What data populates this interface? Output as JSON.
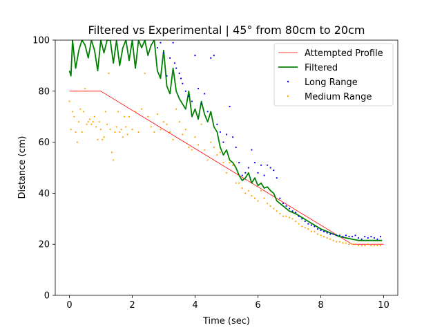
{
  "chart_data": {
    "type": "line",
    "title": "Filtered vs Experimental | 45° from 80cm to 20cm",
    "xlabel": "Time (sec)",
    "ylabel": "Distance (cm)",
    "xlim": [
      -0.45,
      10.45
    ],
    "ylim": [
      0,
      100
    ],
    "xticks": [
      0,
      2,
      4,
      6,
      8,
      10
    ],
    "yticks": [
      0,
      20,
      40,
      60,
      80,
      100
    ],
    "grid": false,
    "legend_position": "top-right",
    "series": [
      {
        "name": "Attempted Profile",
        "kind": "line",
        "color": "#ff0000",
        "x": [
          0,
          1,
          9,
          10
        ],
        "y": [
          80,
          80,
          20,
          20
        ]
      },
      {
        "name": "Filtered",
        "kind": "line",
        "color": "#008000",
        "x": [
          0,
          0.05,
          0.1,
          0.15,
          0.2,
          0.3,
          0.4,
          0.5,
          0.6,
          0.7,
          0.8,
          0.9,
          1.0,
          1.1,
          1.2,
          1.3,
          1.4,
          1.5,
          1.6,
          1.7,
          1.8,
          1.9,
          2.0,
          2.1,
          2.2,
          2.3,
          2.4,
          2.5,
          2.6,
          2.7,
          2.8,
          2.9,
          3.0,
          3.1,
          3.2,
          3.3,
          3.4,
          3.5,
          3.6,
          3.7,
          3.8,
          3.9,
          4.0,
          4.1,
          4.2,
          4.3,
          4.4,
          4.5,
          4.6,
          4.7,
          4.8,
          4.9,
          5.0,
          5.1,
          5.2,
          5.3,
          5.4,
          5.5,
          5.6,
          5.7,
          5.8,
          5.9,
          6.0,
          6.1,
          6.2,
          6.3,
          6.4,
          6.5,
          6.6,
          6.7,
          6.8,
          6.9,
          7.0,
          7.2,
          7.4,
          7.6,
          7.8,
          8.0,
          8.2,
          8.4,
          8.6,
          8.8,
          9.0,
          9.2,
          9.4,
          9.6,
          9.8,
          9.95
        ],
        "y": [
          88,
          86,
          100,
          94,
          89,
          96,
          100,
          98,
          93,
          100,
          96,
          88,
          100,
          95,
          100,
          100,
          91,
          100,
          90,
          97,
          100,
          92,
          100,
          89,
          100,
          97,
          100,
          94,
          98,
          100,
          88,
          85,
          96,
          82,
          79,
          89,
          80,
          77,
          75,
          73,
          80,
          70,
          73,
          69,
          76,
          71,
          68,
          72,
          66,
          64,
          58,
          55,
          57,
          53,
          52,
          50,
          47,
          45,
          46,
          48,
          44,
          46,
          43,
          44,
          42,
          42.5,
          41,
          40,
          37,
          36,
          35,
          34,
          33,
          32,
          30.5,
          29,
          27.5,
          26,
          25,
          24,
          23,
          22.5,
          22,
          21.5,
          21.5,
          21.5,
          21.5,
          21.5
        ]
      },
      {
        "name": "Long Range",
        "kind": "scatter",
        "color": "#0000ff",
        "x": [
          2.8,
          2.9,
          3.0,
          3.1,
          3.2,
          3.3,
          3.35,
          3.4,
          3.5,
          3.55,
          3.6,
          3.7,
          3.8,
          3.9,
          4.0,
          4.1,
          4.2,
          4.3,
          4.4,
          4.5,
          4.6,
          4.7,
          4.8,
          4.9,
          5.0,
          5.1,
          5.2,
          5.3,
          5.4,
          5.5,
          5.6,
          5.7,
          5.8,
          5.9,
          6.0,
          6.1,
          6.2,
          6.3,
          6.4,
          6.5,
          6.6,
          6.7,
          6.8,
          6.9,
          7.0,
          7.1,
          7.2,
          7.3,
          7.4,
          7.5,
          7.6,
          7.7,
          7.8,
          7.9,
          8.0,
          8.1,
          8.2,
          8.3,
          8.4,
          8.5,
          8.6,
          8.7,
          8.8,
          8.9,
          9.0,
          9.1,
          9.2,
          9.3,
          9.4,
          9.5,
          9.6,
          9.7,
          9.8,
          9.9
        ],
        "y": [
          97,
          99,
          95,
          86,
          93,
          99,
          91,
          89,
          87,
          85,
          83,
          80,
          78,
          76,
          94,
          81,
          75,
          79,
          72,
          93,
          94,
          67,
          64,
          60,
          63,
          74,
          62,
          58,
          52,
          47,
          48,
          50,
          57,
          52,
          48,
          51,
          47,
          51,
          50,
          49,
          46,
          38,
          36,
          35,
          34,
          33,
          32.5,
          31,
          30,
          29,
          28,
          27.5,
          27,
          26,
          25.5,
          25,
          24.5,
          24,
          24,
          23.5,
          23.5,
          23,
          23.5,
          23,
          23,
          23.5,
          22.5,
          22,
          23,
          22.5,
          23,
          22.5,
          22,
          23
        ]
      },
      {
        "name": "Medium Range",
        "kind": "scatter",
        "color": "#ffa500",
        "x": [
          0.0,
          0.05,
          0.1,
          0.15,
          0.2,
          0.25,
          0.3,
          0.35,
          0.4,
          0.45,
          0.5,
          0.55,
          0.6,
          0.65,
          0.7,
          0.75,
          0.8,
          0.85,
          0.9,
          0.95,
          1.0,
          1.05,
          1.1,
          1.15,
          1.2,
          1.25,
          1.3,
          1.35,
          1.4,
          1.45,
          1.5,
          1.55,
          1.6,
          1.65,
          1.7,
          1.75,
          1.8,
          1.85,
          1.9,
          2.0,
          2.1,
          2.2,
          2.3,
          2.4,
          2.5,
          2.6,
          2.7,
          2.8,
          2.9,
          3.0,
          3.1,
          3.2,
          3.3,
          3.4,
          3.5,
          3.6,
          3.7,
          3.8,
          3.9,
          4.0,
          4.1,
          4.2,
          4.3,
          4.4,
          4.5,
          4.6,
          4.7,
          4.8,
          4.9,
          5.0,
          5.1,
          5.2,
          5.3,
          5.4,
          5.5,
          5.6,
          5.7,
          5.8,
          5.9,
          6.0,
          6.1,
          6.2,
          6.3,
          6.4,
          6.5,
          6.6,
          6.7,
          6.8,
          6.9,
          7.0,
          7.1,
          7.2,
          7.3,
          7.4,
          7.5,
          7.6,
          7.7,
          7.8,
          7.9,
          8.0,
          8.1,
          8.2,
          8.3,
          8.4,
          8.5,
          8.6,
          8.7,
          8.8,
          8.9,
          9.0,
          9.1,
          9.2,
          9.3,
          9.4,
          9.5,
          9.6,
          9.7,
          9.8,
          9.9
        ],
        "y": [
          76,
          65,
          72,
          70,
          64,
          60,
          68,
          73,
          64,
          72,
          81,
          67,
          68,
          69,
          67,
          68,
          70,
          66,
          61,
          68,
          65,
          61,
          62,
          72,
          67,
          87,
          65,
          56,
          53,
          64,
          66,
          72,
          64,
          65,
          62,
          70,
          66,
          63,
          70,
          65,
          72,
          64,
          73,
          87,
          70,
          66,
          64,
          71,
          65,
          68,
          67,
          64,
          61,
          73,
          68,
          63,
          65,
          58,
          57,
          62,
          59,
          67,
          57,
          53,
          60,
          58,
          55,
          56,
          52,
          48,
          52,
          51,
          44,
          44,
          42,
          40,
          41,
          39,
          38,
          37,
          41,
          38,
          36,
          35,
          34,
          33,
          32,
          31,
          31,
          30.5,
          30,
          29,
          28,
          27,
          26.5,
          26,
          25,
          25,
          24,
          23.5,
          23,
          22.5,
          22,
          21.5,
          21,
          21,
          20.5,
          20.5,
          20,
          20,
          20,
          19.5,
          19.5,
          19.5,
          20,
          19.5,
          19.5,
          19.5,
          19.5
        ]
      }
    ]
  }
}
